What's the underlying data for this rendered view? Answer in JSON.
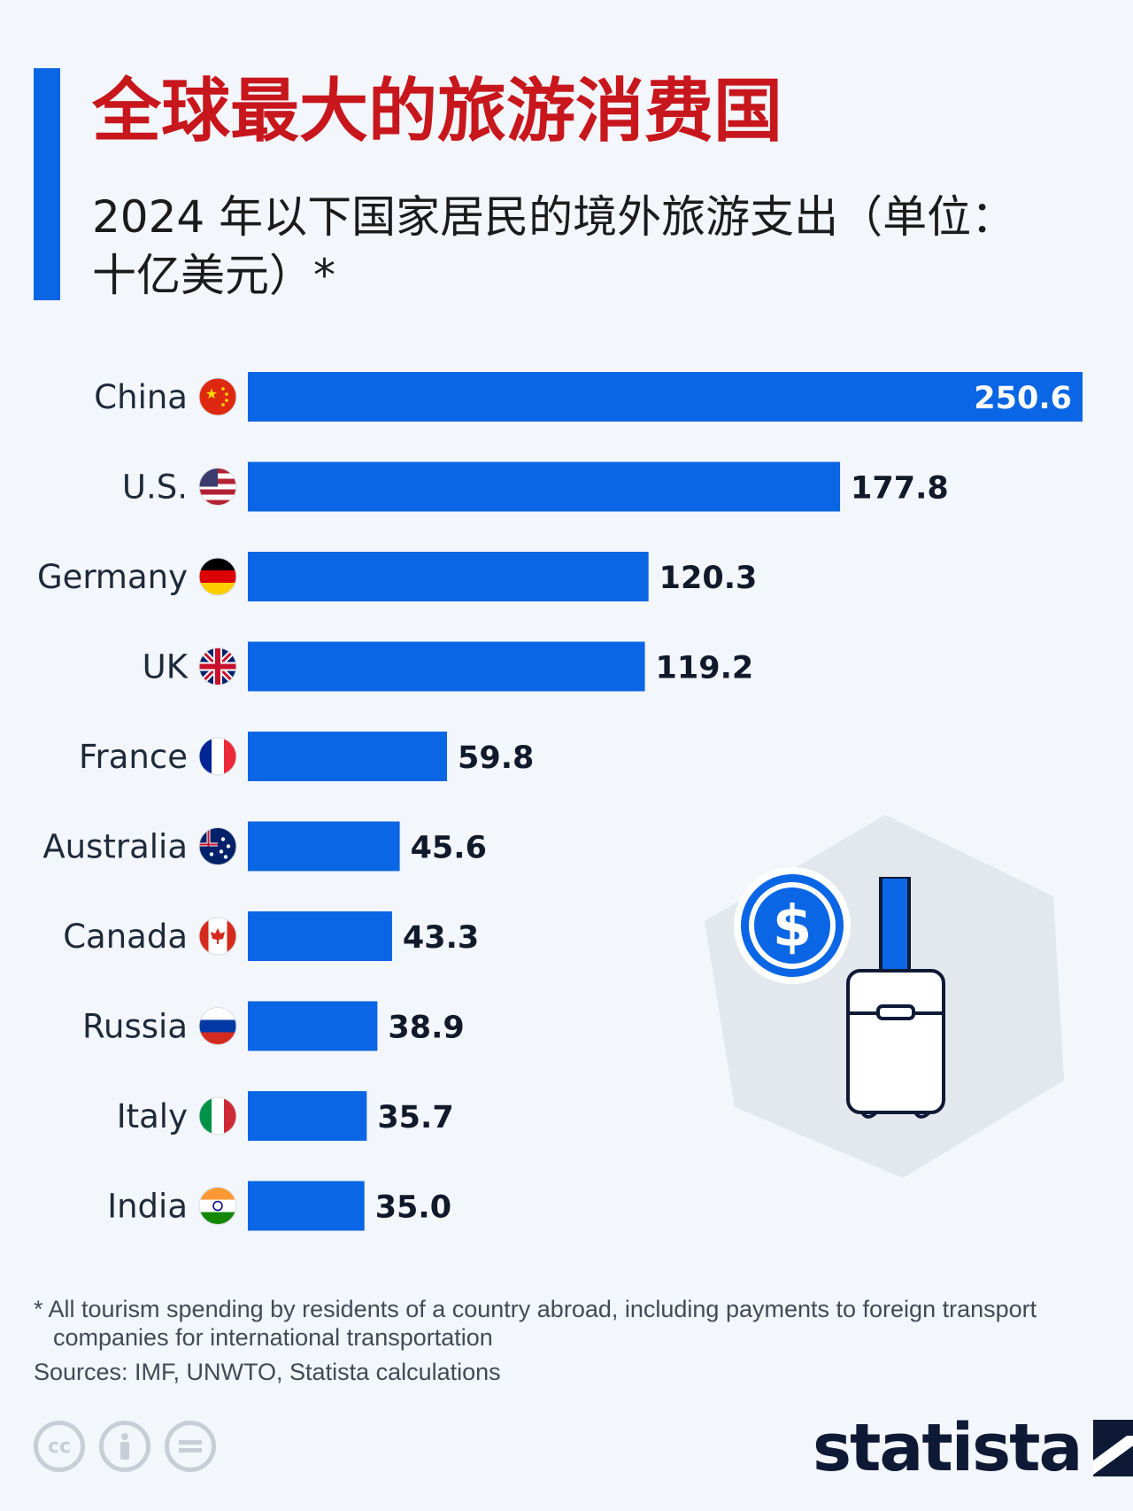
{
  "header": {
    "title": "全球最大的旅游消费国",
    "subtitle": "2024 年以下国家居民的境外旅游支出（单位：十亿美元）*"
  },
  "colors": {
    "accent": "#0a66e4",
    "title": "#c8161d",
    "bar": "#0a66e4"
  },
  "chart_data": {
    "type": "bar",
    "orientation": "horizontal",
    "categories": [
      "China",
      "U.S.",
      "Germany",
      "UK",
      "France",
      "Australia",
      "Canada",
      "Russia",
      "Italy",
      "India"
    ],
    "values": [
      250.6,
      177.8,
      120.3,
      119.2,
      59.8,
      45.6,
      43.3,
      38.9,
      35.7,
      35.0
    ],
    "value_labels": [
      "250.6",
      "177.8",
      "120.3",
      "119.2",
      "59.8",
      "45.6",
      "43.3",
      "38.9",
      "35.7",
      "35.0"
    ],
    "flags": [
      "china-flag-icon",
      "us-flag-icon",
      "germany-flag-icon",
      "uk-flag-icon",
      "france-flag-icon",
      "australia-flag-icon",
      "canada-flag-icon",
      "russia-flag-icon",
      "italy-flag-icon",
      "india-flag-icon"
    ],
    "xlim": [
      0,
      250.6
    ],
    "grid": false,
    "legend": "none"
  },
  "footer": {
    "footnote": "* All tourism spending by residents of a country abroad, including payments to foreign transport companies for international transportation",
    "sources": "Sources: IMF, UNWTO, Statista calculations",
    "brand": "statista",
    "license_icons": [
      "cc-icon",
      "attribution-icon",
      "no-derivatives-icon"
    ]
  },
  "illustration": {
    "icons": [
      "dollar-coin-icon",
      "suitcase-icon"
    ]
  }
}
